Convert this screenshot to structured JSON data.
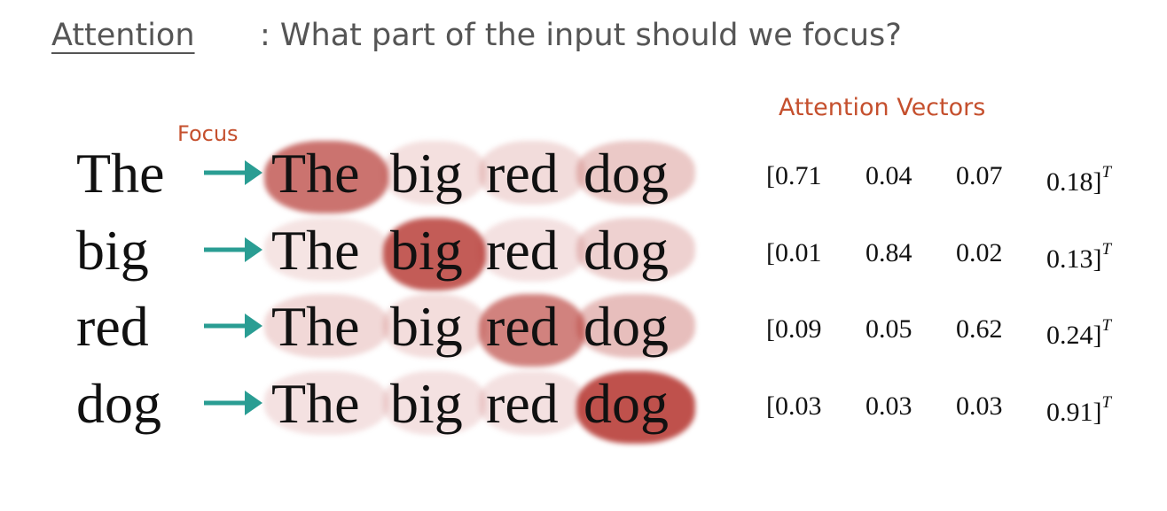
{
  "title": {
    "word": "Attention",
    "question": ": What part of the input should we focus?"
  },
  "focus_label": "Focus",
  "vectors_header": "Attention Vectors",
  "tokens": [
    "The",
    "big",
    "red",
    "dog"
  ],
  "transpose_symbol": "T",
  "accent_color": "#c5502e",
  "arrow_color": "#2a9d93",
  "heat_color": "#b22e28",
  "rows": [
    {
      "query": "The",
      "weights": [
        "0.71",
        "0.04",
        "0.07",
        "0.18"
      ]
    },
    {
      "query": "big",
      "weights": [
        "0.01",
        "0.84",
        "0.02",
        "0.13"
      ]
    },
    {
      "query": "red",
      "weights": [
        "0.09",
        "0.05",
        "0.62",
        "0.24"
      ]
    },
    {
      "query": "dog",
      "weights": [
        "0.03",
        "0.03",
        "0.03",
        "0.91"
      ]
    }
  ]
}
